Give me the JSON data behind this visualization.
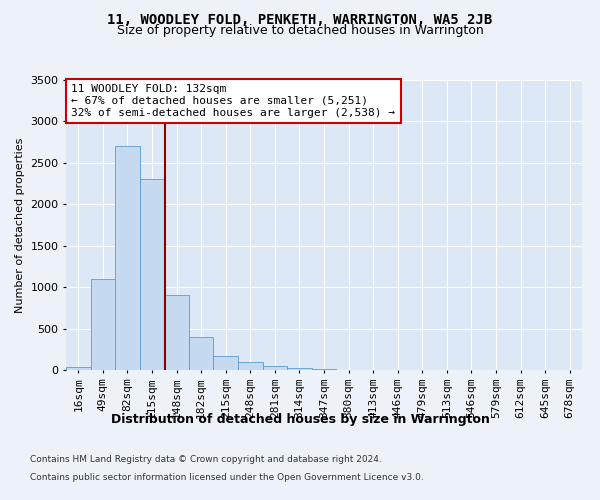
{
  "title": "11, WOODLEY FOLD, PENKETH, WARRINGTON, WA5 2JB",
  "subtitle": "Size of property relative to detached houses in Warrington",
  "xlabel": "Distribution of detached houses by size in Warrington",
  "ylabel": "Number of detached properties",
  "bar_values": [
    40,
    1100,
    2700,
    2300,
    900,
    400,
    175,
    100,
    50,
    30,
    10,
    5,
    3,
    2,
    1,
    1,
    0,
    0,
    0,
    0,
    0
  ],
  "bar_color": "#c5d9f0",
  "bar_edge_color": "#5b9bd5",
  "bar_labels": [
    "16sqm",
    "49sqm",
    "82sqm",
    "115sqm",
    "148sqm",
    "182sqm",
    "215sqm",
    "248sqm",
    "281sqm",
    "314sqm",
    "347sqm",
    "380sqm",
    "413sqm",
    "446sqm",
    "479sqm",
    "513sqm",
    "546sqm",
    "579sqm",
    "612sqm",
    "645sqm",
    "678sqm"
  ],
  "ylim": [
    0,
    3500
  ],
  "yticks": [
    0,
    500,
    1000,
    1500,
    2000,
    2500,
    3000,
    3500
  ],
  "vline_x": 3.52,
  "vline_color": "#8b0000",
  "annotation_text": "11 WOODLEY FOLD: 132sqm\n← 67% of detached houses are smaller (5,251)\n32% of semi-detached houses are larger (2,538) →",
  "annotation_box_color": "#ffffff",
  "annotation_box_edge_color": "#cc0000",
  "fig_bg_color": "#edf2f9",
  "plot_bg_color": "#dce8f5",
  "footer_line1": "Contains HM Land Registry data © Crown copyright and database right 2024.",
  "footer_line2": "Contains public sector information licensed under the Open Government Licence v3.0.",
  "title_fontsize": 10,
  "subtitle_fontsize": 9,
  "annotation_fontsize": 8,
  "ylabel_fontsize": 8,
  "grid_color": "#ffffff",
  "tick_label_fontsize": 7
}
